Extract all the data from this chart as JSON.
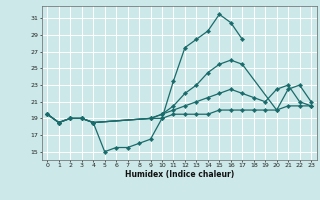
{
  "title": "",
  "xlabel": "Humidex (Indice chaleur)",
  "bg_color": "#cce8e8",
  "grid_color": "#ffffff",
  "line_color": "#1a6b6b",
  "xlim": [
    -0.5,
    23.5
  ],
  "ylim": [
    14.0,
    32.5
  ],
  "yticks": [
    15,
    17,
    19,
    21,
    23,
    25,
    27,
    29,
    31
  ],
  "xticks": [
    0,
    1,
    2,
    3,
    4,
    5,
    6,
    7,
    8,
    9,
    10,
    11,
    12,
    13,
    14,
    15,
    16,
    17,
    18,
    19,
    20,
    21,
    22,
    23
  ],
  "lines": [
    {
      "x": [
        0,
        1,
        2,
        3,
        4,
        5,
        6,
        7,
        8,
        9,
        10,
        11,
        12,
        13,
        14,
        15,
        16,
        17
      ],
      "y": [
        19.5,
        18.5,
        19.0,
        19.0,
        18.5,
        15.0,
        15.5,
        15.5,
        16.0,
        16.5,
        19.0,
        23.5,
        27.5,
        28.5,
        29.5,
        31.5,
        30.5,
        28.5
      ]
    },
    {
      "x": [
        0,
        1,
        2,
        3,
        4,
        9,
        10,
        11,
        12,
        13,
        14,
        15,
        16,
        17,
        20,
        21,
        22,
        23
      ],
      "y": [
        19.5,
        18.5,
        19.0,
        19.0,
        18.5,
        19.0,
        19.5,
        20.5,
        22.0,
        23.0,
        24.5,
        25.5,
        26.0,
        25.5,
        20.0,
        22.5,
        23.0,
        21.0
      ]
    },
    {
      "x": [
        0,
        1,
        2,
        3,
        4,
        9,
        10,
        11,
        12,
        13,
        14,
        15,
        16,
        17,
        18,
        19,
        20,
        21,
        22,
        23
      ],
      "y": [
        19.5,
        18.5,
        19.0,
        19.0,
        18.5,
        19.0,
        19.5,
        20.0,
        20.5,
        21.0,
        21.5,
        22.0,
        22.5,
        22.0,
        21.5,
        21.0,
        22.5,
        23.0,
        21.0,
        20.5
      ]
    },
    {
      "x": [
        0,
        1,
        2,
        3,
        4,
        9,
        10,
        11,
        12,
        13,
        14,
        15,
        16,
        17,
        18,
        19,
        20,
        21,
        22,
        23
      ],
      "y": [
        19.5,
        18.5,
        19.0,
        19.0,
        18.5,
        19.0,
        19.0,
        19.5,
        19.5,
        19.5,
        19.5,
        20.0,
        20.0,
        20.0,
        20.0,
        20.0,
        20.0,
        20.5,
        20.5,
        20.5
      ]
    }
  ],
  "markersize": 2.2,
  "linewidth": 0.9
}
